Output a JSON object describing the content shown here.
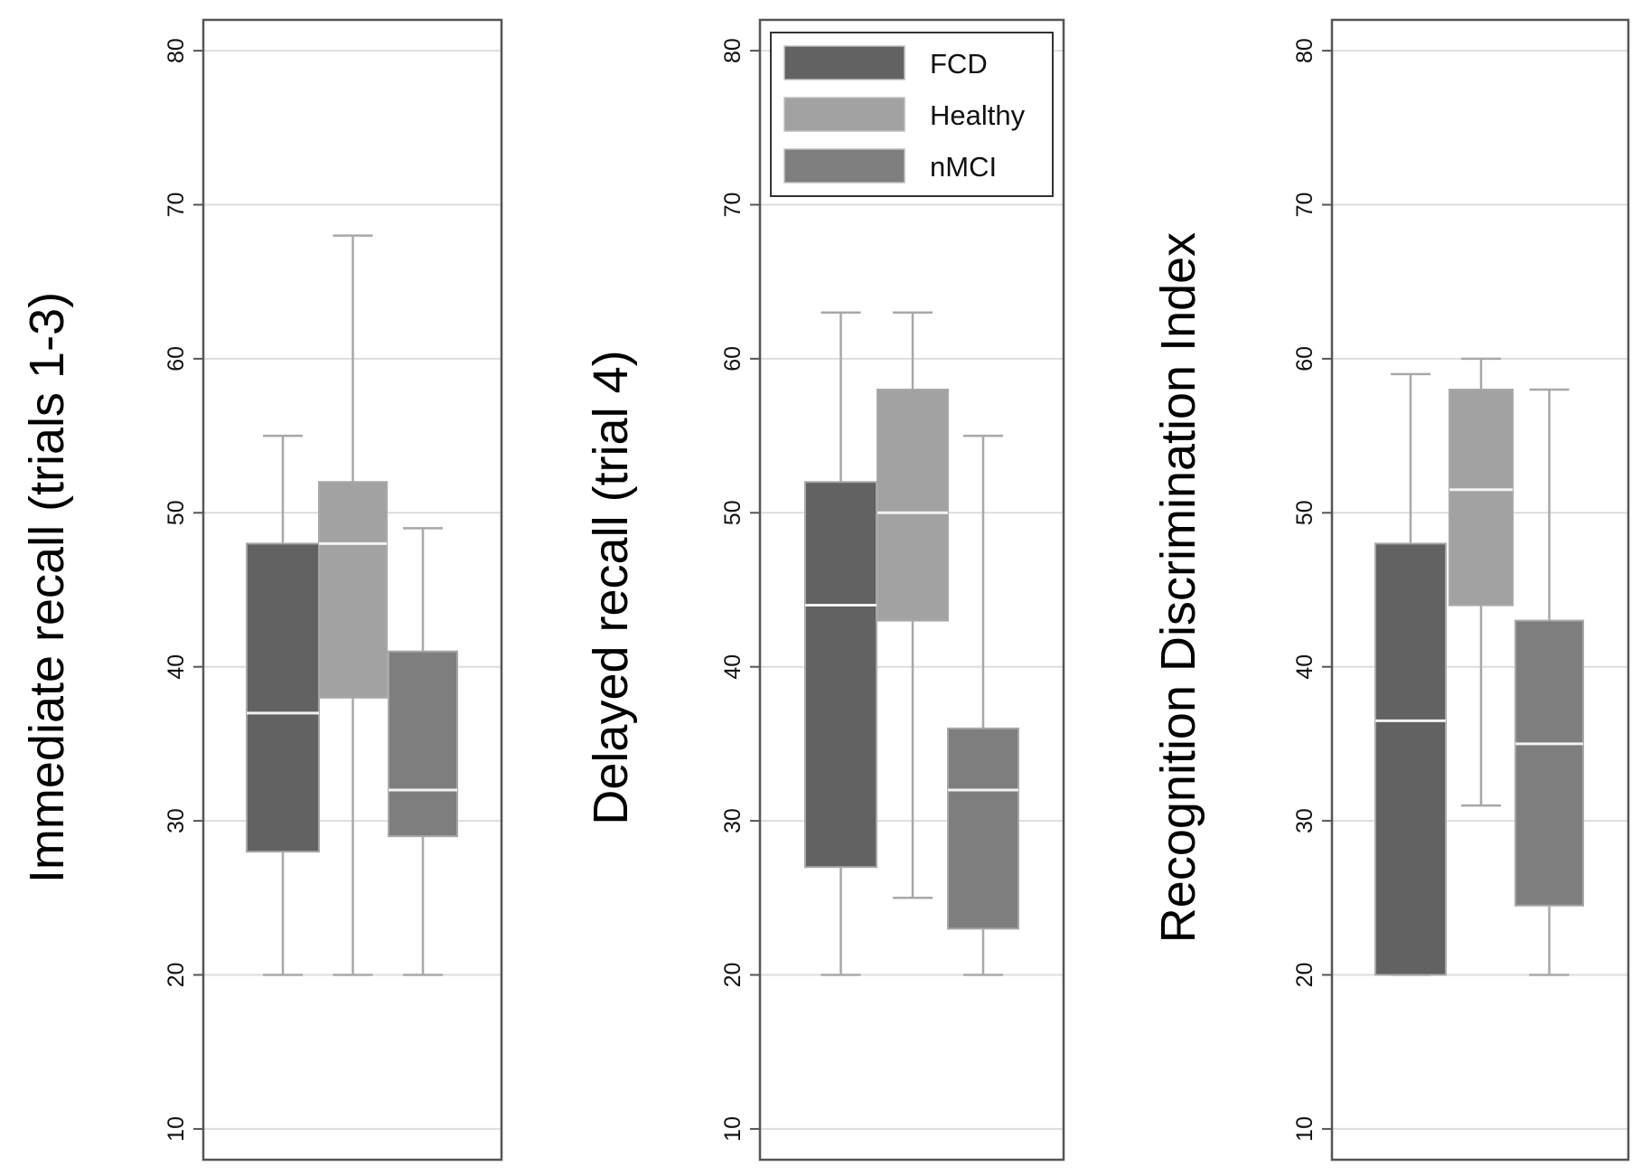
{
  "chart_data": [
    {
      "type": "box",
      "ylabel": "Immediate recall (trials 1-3)",
      "ylim": [
        8,
        82
      ],
      "yticks": [
        10,
        20,
        30,
        40,
        50,
        60,
        70,
        80
      ],
      "grid": true,
      "boxes": [
        {
          "group": "FCD",
          "whisker_low": 20,
          "q1": 28,
          "median": 37,
          "q3": 48,
          "whisker_high": 55
        },
        {
          "group": "Healthy",
          "whisker_low": 20,
          "q1": 38,
          "median": 48,
          "q3": 52,
          "whisker_high": 68
        },
        {
          "group": "nMCI",
          "whisker_low": 20,
          "q1": 29,
          "median": 32,
          "q3": 41,
          "whisker_high": 49
        }
      ]
    },
    {
      "type": "box",
      "ylabel": "Delayed recall (trial 4)",
      "ylim": [
        8,
        82
      ],
      "yticks": [
        10,
        20,
        30,
        40,
        50,
        60,
        70,
        80
      ],
      "grid": true,
      "legend_position": "top-right",
      "boxes": [
        {
          "group": "FCD",
          "whisker_low": 20,
          "q1": 27,
          "median": 44,
          "q3": 52,
          "whisker_high": 63
        },
        {
          "group": "Healthy",
          "whisker_low": 25,
          "q1": 43,
          "median": 50,
          "q3": 58,
          "whisker_high": 63
        },
        {
          "group": "nMCI",
          "whisker_low": 20,
          "q1": 23,
          "median": 32,
          "q3": 36,
          "whisker_high": 55
        }
      ]
    },
    {
      "type": "box",
      "ylabel": "Recognition Discrimination Index",
      "ylim": [
        8,
        82
      ],
      "yticks": [
        10,
        20,
        30,
        40,
        50,
        60,
        70,
        80
      ],
      "grid": true,
      "boxes": [
        {
          "group": "FCD",
          "whisker_low": 20,
          "q1": 20,
          "median": 36.5,
          "q3": 48,
          "whisker_high": 59
        },
        {
          "group": "Healthy",
          "whisker_low": 31,
          "q1": 44,
          "median": 51.5,
          "q3": 58,
          "whisker_high": 60
        },
        {
          "group": "nMCI",
          "whisker_low": 20,
          "q1": 24.5,
          "median": 35,
          "q3": 43,
          "whisker_high": 58
        }
      ]
    }
  ],
  "legend": {
    "items": [
      {
        "label": "FCD",
        "color": "#626262"
      },
      {
        "label": "Healthy",
        "color": "#a2a2a2"
      },
      {
        "label": "nMCI",
        "color": "#7e7e7e"
      }
    ]
  },
  "colors": {
    "FCD": "#626262",
    "Healthy": "#a2a2a2",
    "nMCI": "#7e7e7e",
    "grid": "#dddddd",
    "whisker": "#a8a8a8",
    "frame": "#555555",
    "median": "#f2f2f2"
  }
}
